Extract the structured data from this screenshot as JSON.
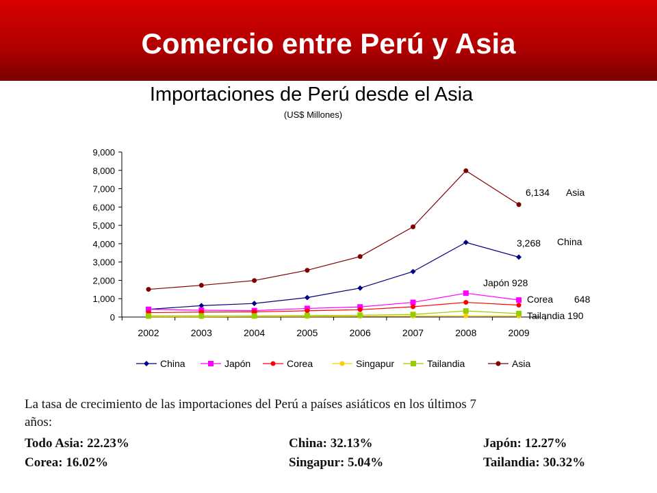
{
  "header": {
    "title": "Comercio entre Perú y Asia"
  },
  "chart_data": {
    "type": "line",
    "title": "Importaciones de Perú desde el Asia",
    "subtitle": "(US$ Millones)",
    "categories": [
      "2002",
      "2003",
      "2004",
      "2005",
      "2006",
      "2007",
      "2008",
      "2009"
    ],
    "ylim": [
      0,
      9000
    ],
    "yticks": [
      "0",
      "1,000",
      "2,000",
      "3,000",
      "4,000",
      "5,000",
      "6,000",
      "7,000",
      "8,000",
      "9,000"
    ],
    "grid": false,
    "legend_position": "bottom",
    "series": [
      {
        "name": "China",
        "color": "#000080",
        "marker": "diamond",
        "values": [
          420,
          620,
          740,
          1060,
          1580,
          2480,
          4070,
          3268
        ]
      },
      {
        "name": "Japón",
        "color": "#ff00ff",
        "marker": "square",
        "values": [
          420,
          370,
          350,
          470,
          550,
          800,
          1300,
          928
        ]
      },
      {
        "name": "Corea",
        "color": "#ff0000",
        "marker": "circle",
        "values": [
          240,
          270,
          280,
          340,
          400,
          560,
          800,
          648
        ]
      },
      {
        "name": "Singapur",
        "color": "#ffcc00",
        "marker": "circle",
        "values": [
          20,
          20,
          25,
          30,
          40,
          50,
          60,
          50
        ]
      },
      {
        "name": "Tailandia",
        "color": "#99cc00",
        "marker": "square",
        "values": [
          60,
          60,
          60,
          80,
          100,
          140,
          330,
          190
        ]
      },
      {
        "name": "Asia",
        "color": "#800000",
        "marker": "circle",
        "values": [
          1510,
          1730,
          1990,
          2550,
          3300,
          4920,
          7980,
          6134
        ]
      }
    ],
    "annotations": [
      {
        "text_value": "6,134",
        "text_label": "Asia"
      },
      {
        "text_value": "3,268",
        "text_label": "China"
      },
      {
        "text_value": "Japón 928"
      },
      {
        "text_value": "Corea",
        "text_label": "648"
      },
      {
        "text_value": "Tailandia 190"
      }
    ]
  },
  "note": {
    "line1": "La tasa de crecimiento de las importaciones del Perú a países asiáticos en los últimos 7",
    "line2": "años:",
    "stats": [
      "Todo Asia: 22.23%",
      "China: 32.13%",
      "Japón: 12.27%",
      "Corea: 16.02%",
      "Singapur: 5.04%",
      "Tailandia: 30.32%"
    ]
  }
}
